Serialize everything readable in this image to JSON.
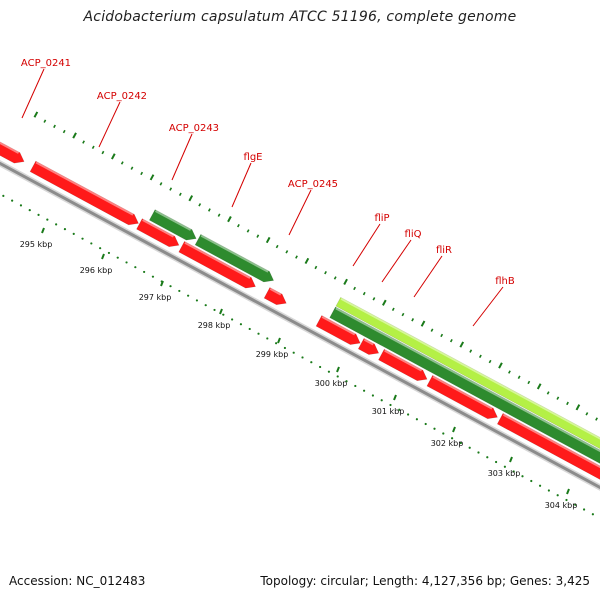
{
  "title": "Acidobacterium capsulatum ATCC 51196, complete genome",
  "footer": {
    "accession": "Accession: NC_012483",
    "summary": "Topology: circular; Length: 4,127,356 bp; Genes: 3,425"
  },
  "colors": {
    "gene_red": "#ff1a1a",
    "gene_dark_green": "#2e8b2e",
    "gene_light_green": "#b4f046",
    "backbone": "#8c8c8c",
    "tick": "#1a7a1a",
    "label_red": "#d40000"
  },
  "gene_labels": [
    "ACP_0241",
    "ACP_0242",
    "ACP_0243",
    "flgE",
    "ACP_0245",
    "fliP",
    "fliQ",
    "fliR",
    "flhB"
  ],
  "ticks": [
    {
      "label": "295 kbp"
    },
    {
      "label": "296 kbp"
    },
    {
      "label": "297 kbp"
    },
    {
      "label": "298 kbp"
    },
    {
      "label": "299 kbp"
    },
    {
      "label": "300 kbp"
    },
    {
      "label": "301 kbp"
    },
    {
      "label": "302 kbp"
    },
    {
      "label": "303 kbp"
    },
    {
      "label": "304 kbp"
    }
  ]
}
